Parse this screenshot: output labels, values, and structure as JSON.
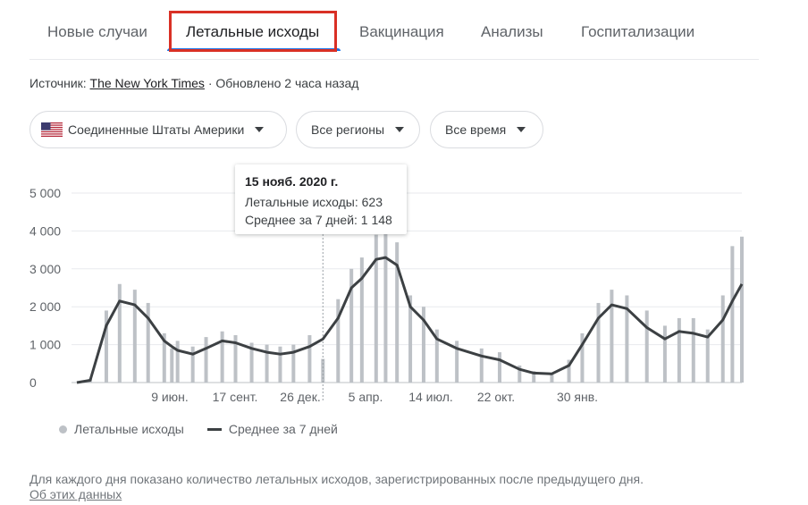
{
  "tabs": [
    {
      "label": "Новые случаи",
      "active": false
    },
    {
      "label": "Летальные исходы",
      "active": true
    },
    {
      "label": "Вакцинация",
      "active": false
    },
    {
      "label": "Анализы",
      "active": false
    },
    {
      "label": "Госпитализации",
      "active": false
    }
  ],
  "source": {
    "prefix": "Источник:",
    "link": "The New York Times",
    "updated": "· Обновлено 2 часа назад"
  },
  "filters": {
    "country": "Соединенные Штаты Америки",
    "region": "Все регионы",
    "period": "Все время"
  },
  "colors": {
    "tab_active_underline": "#1a73e8",
    "highlight_box": "#d93025",
    "bars": "#bdc1c6",
    "average_line": "#3c4043"
  },
  "tooltip": {
    "date": "15 нояб. 2020 г.",
    "deaths_line": "Летальные исходы: 623",
    "avg_line": "Среднее за 7 дней: 1 148"
  },
  "legend": {
    "bars": "Летальные исходы",
    "line": "Среднее за 7 дней"
  },
  "footnote": "Для каждого дня показано количество летальных исходов, зарегистрированных после предыдущего дня.",
  "about_link": "Об этих данных",
  "chart_data": {
    "type": "bar",
    "title": "",
    "xlabel": "",
    "ylabel": "",
    "ylim": [
      0,
      5000
    ],
    "y_ticks": [
      "0",
      "1 000",
      "2 000",
      "3 000",
      "4 000",
      "5 000"
    ],
    "x_tick_labels": [
      "9 июн.",
      "17 сент.",
      "26 дек.",
      "5 апр.",
      "14 июл.",
      "22 окт.",
      "30 янв."
    ],
    "grid": true,
    "legend_position": "bottom",
    "hover_date": "15 нояб. 2020 г.",
    "x": [
      "2020-03-01",
      "2020-03-15",
      "2020-04-01",
      "2020-04-15",
      "2020-05-01",
      "2020-05-15",
      "2020-06-01",
      "2020-06-09",
      "2020-06-15",
      "2020-07-01",
      "2020-07-15",
      "2020-08-01",
      "2020-08-15",
      "2020-09-01",
      "2020-09-17",
      "2020-10-01",
      "2020-10-15",
      "2020-11-01",
      "2020-11-15",
      "2020-12-01",
      "2020-12-15",
      "2020-12-26",
      "2021-01-10",
      "2021-01-20",
      "2021-02-01",
      "2021-02-15",
      "2021-03-01",
      "2021-03-15",
      "2021-04-05",
      "2021-05-01",
      "2021-05-20",
      "2021-06-10",
      "2021-06-25",
      "2021-07-14",
      "2021-08-01",
      "2021-08-15",
      "2021-09-01",
      "2021-09-15",
      "2021-10-01",
      "2021-10-22",
      "2021-11-10",
      "2021-11-25",
      "2021-12-10",
      "2021-12-25",
      "2022-01-10",
      "2022-01-20",
      "2022-01-30"
    ],
    "series": [
      {
        "name": "Среднее за 7 дней",
        "values": [
          0,
          60,
          1500,
          2150,
          2050,
          1700,
          1100,
          950,
          850,
          750,
          900,
          1100,
          1050,
          900,
          800,
          750,
          800,
          950,
          1148,
          1700,
          2500,
          2750,
          3250,
          3300,
          3100,
          2000,
          1650,
          1150,
          900,
          700,
          600,
          350,
          250,
          230,
          450,
          1000,
          1700,
          2050,
          1950,
          1450,
          1150,
          1350,
          1300,
          1200,
          1650,
          2150,
          2600
        ]
      },
      {
        "name": "Летальные исходы",
        "values": [
          0,
          100,
          1900,
          2600,
          2450,
          2100,
          1300,
          900,
          1100,
          950,
          1200,
          1350,
          1250,
          1050,
          1000,
          950,
          1000,
          1250,
          623,
          2200,
          3000,
          3300,
          3900,
          3950,
          3700,
          2300,
          2000,
          1400,
          1100,
          900,
          800,
          450,
          300,
          250,
          600,
          1300,
          2100,
          2450,
          2300,
          1900,
          1500,
          1700,
          1700,
          1400,
          2300,
          3600,
          3850
        ]
      }
    ]
  }
}
